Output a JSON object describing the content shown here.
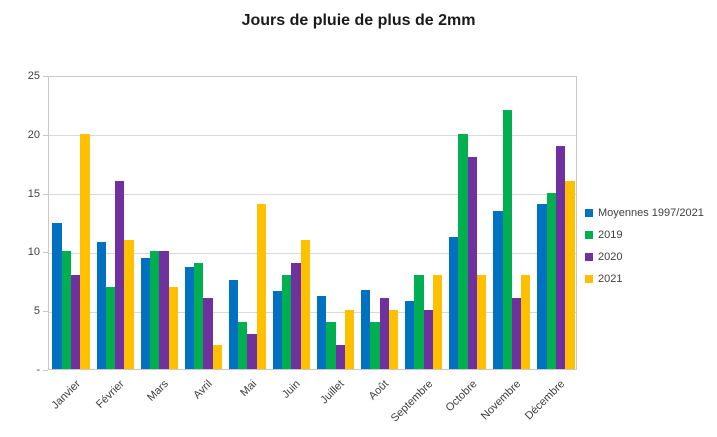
{
  "chart_data": {
    "type": "bar",
    "title": "Jours de pluie de plus de 2mm",
    "categories": [
      "Janvier",
      "Février",
      "Mars",
      "Avril",
      "Mai",
      "Juin",
      "Juillet",
      "Août",
      "Septembre",
      "Octobre",
      "Novembre",
      "Décembre"
    ],
    "series": [
      {
        "name": "Moyennes 1997/2021",
        "color": "#0070C0",
        "values": [
          12.4,
          10.8,
          9.4,
          8.7,
          7.6,
          6.6,
          6.2,
          6.7,
          5.8,
          11.2,
          13.4,
          14.0
        ]
      },
      {
        "name": "2019",
        "color": "#00B050",
        "values": [
          10,
          7,
          10,
          9,
          4,
          8,
          4,
          4,
          8,
          20,
          22,
          15
        ]
      },
      {
        "name": "2020",
        "color": "#7030A0",
        "values": [
          8,
          16,
          10,
          6,
          3,
          9,
          2,
          6,
          5,
          18,
          6,
          19
        ]
      },
      {
        "name": "2021",
        "color": "#FFC000",
        "values": [
          20,
          11,
          7,
          2,
          14,
          11,
          5,
          5,
          8,
          8,
          8,
          16
        ]
      }
    ],
    "ylim": [
      0,
      25
    ],
    "yticks": [
      {
        "value": 25,
        "label": "25"
      },
      {
        "value": 20,
        "label": "20"
      },
      {
        "value": 15,
        "label": "15"
      },
      {
        "value": 10,
        "label": "10"
      },
      {
        "value": 5,
        "label": "5"
      },
      {
        "value": 0,
        "label": "-"
      }
    ],
    "xlabel": "",
    "ylabel": "",
    "grid": true,
    "legend_position": "right"
  },
  "colors": {
    "background": "#FFFFFF",
    "gridline": "#D9D9D9",
    "axis_border": "#C8C8C8",
    "axis_text": "#404040",
    "title_text": "#1A1A1A"
  }
}
